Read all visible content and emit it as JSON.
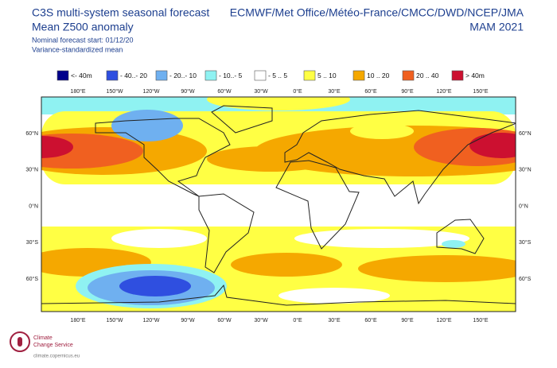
{
  "header": {
    "title": "C3S multi-system seasonal forecast",
    "subtitle": "Mean Z500 anomaly",
    "forecast_start": "Nominal forecast start: 01/12/20",
    "method": "Variance-standardized mean",
    "centres": "ECMWF/Met Office/Météo-France/CMCC/DWD/NCEP/JMA",
    "period": "MAM 2021"
  },
  "legend": [
    {
      "label": "<- 40m",
      "color": "#00008b"
    },
    {
      "label": "- 40..- 20",
      "color": "#2f4fe0"
    },
    {
      "label": "- 20..- 10",
      "color": "#6fb0f0"
    },
    {
      "label": "- 10..- 5",
      "color": "#8ff2f2"
    },
    {
      "label": "- 5 .. 5",
      "color": "#ffffff"
    },
    {
      "label": "5 .. 10",
      "color": "#ffff44"
    },
    {
      "label": "10 .. 20",
      "color": "#f5a800"
    },
    {
      "label": "20 .. 40",
      "color": "#f06020"
    },
    {
      "label": "> 40m",
      "color": "#cc1030"
    }
  ],
  "longitude_labels": [
    "180°E",
    "150°W",
    "120°W",
    "90°W",
    "60°W",
    "30°W",
    "0°E",
    "30°E",
    "60°E",
    "90°E",
    "120°E",
    "150°E"
  ],
  "latitude_labels": [
    "60°N",
    "30°N",
    "0°N",
    "30°S",
    "60°S"
  ],
  "logo": {
    "line1": "Climate",
    "line2": "Change Service",
    "url": "climate.copernicus.eu"
  }
}
